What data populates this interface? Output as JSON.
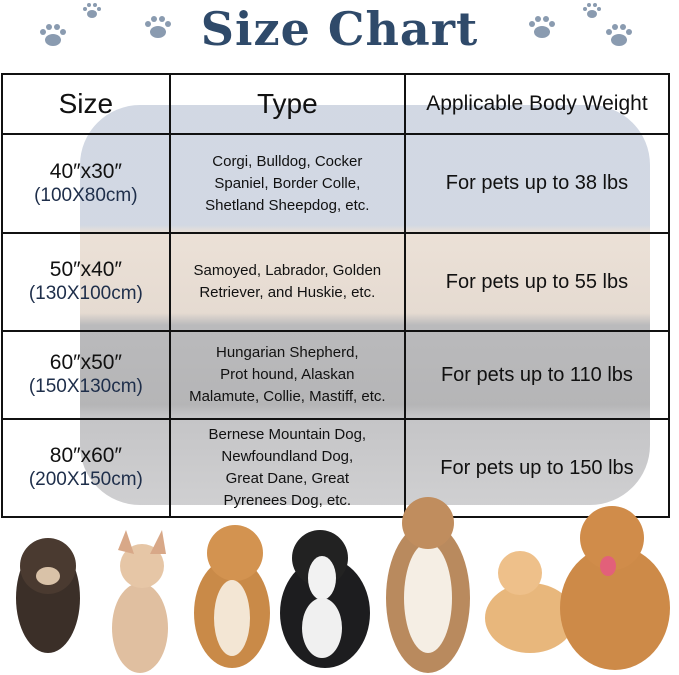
{
  "title": "Size Chart",
  "headers": [
    "Size",
    "Type",
    "Applicable Body Weight"
  ],
  "rows": [
    {
      "size": "40″x30″",
      "cm": "(100X80cm)",
      "type": [
        "Corgi, Bulldog, Cocker",
        "Spaniel, Border Colle,",
        "Shetland Sheepdog, etc."
      ],
      "weight": "For pets up to 38 lbs"
    },
    {
      "size": "50″x40″",
      "cm": "(130X100cm)",
      "type": [
        "Samoyed, Labrador, Golden",
        "Retriever, and Huskie, etc."
      ],
      "weight": "For pets up to 55 lbs"
    },
    {
      "size": "60″x50″",
      "cm": "(150X130cm)",
      "type": [
        "Hungarian Shepherd,",
        "Prot hound, Alaskan",
        "Malamute, Collie, Mastiff, etc."
      ],
      "weight": "For pets up to 110 lbs"
    },
    {
      "size": "80″x60″",
      "cm": "(200X150cm)",
      "type": [
        "Bernese Mountain Dog,",
        "Newfoundland Dog,",
        "Great Dane, Great",
        "Pyrenees Dog, etc."
      ],
      "weight": "For pets up to 150 lbs"
    }
  ],
  "colors": {
    "title": "#2f4a6a",
    "paw": "#8a9bb0"
  }
}
